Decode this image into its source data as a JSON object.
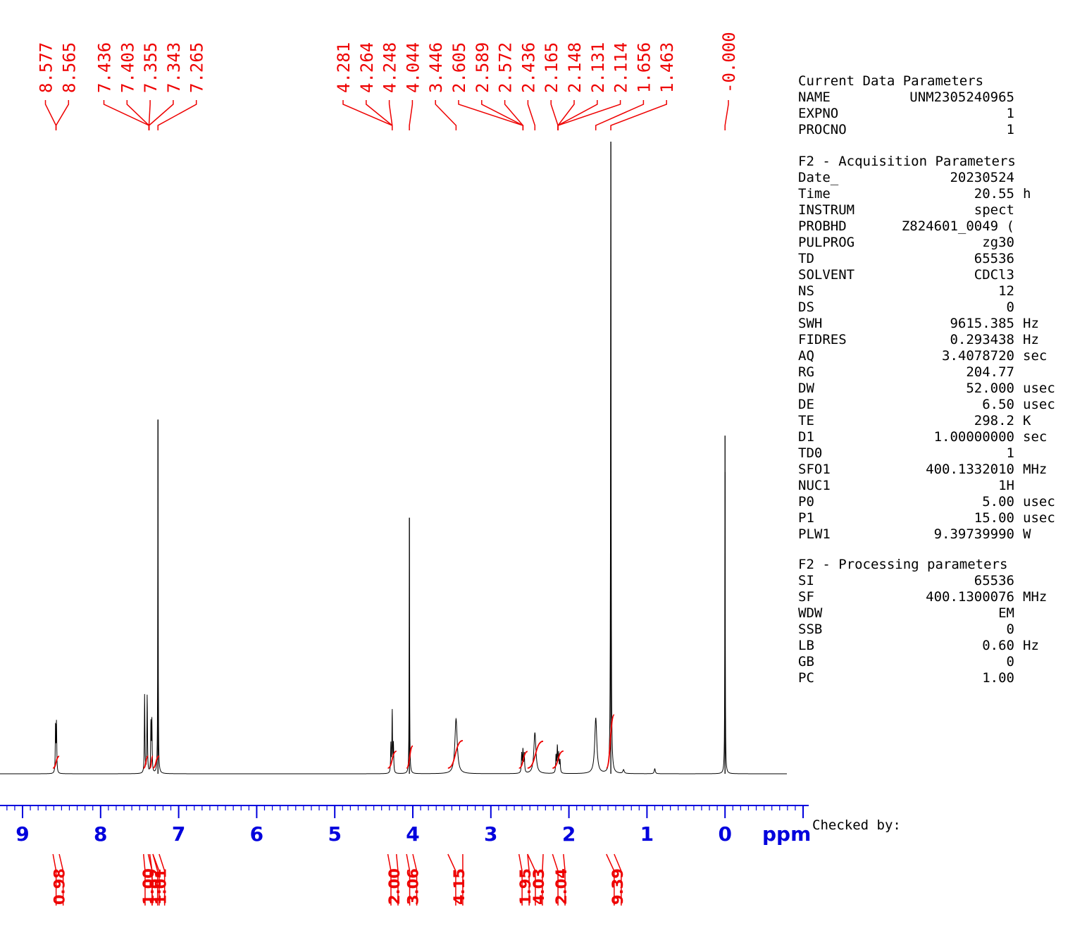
{
  "chart_data": {
    "type": "line",
    "xlabel": "ppm",
    "xlim": [
      9.0,
      0.0
    ],
    "x_ticks": [
      "9",
      "8",
      "7",
      "6",
      "5",
      "4",
      "3",
      "2",
      "1",
      "0"
    ],
    "peak_labels": [
      "8.577",
      "8.565",
      "7.436",
      "7.403",
      "7.355",
      "7.343",
      "7.265",
      "4.281",
      "4.264",
      "4.248",
      "4.044",
      "3.446",
      "2.605",
      "2.589",
      "2.572",
      "2.436",
      "2.165",
      "2.148",
      "2.131",
      "2.114",
      "1.656",
      "1.463",
      "-0.000"
    ],
    "peak_groups": [
      {
        "labels": [
          0,
          1
        ],
        "target": 8.571
      },
      {
        "labels": [
          2,
          3,
          4,
          5
        ],
        "target": 7.38
      },
      {
        "labels": [
          6
        ],
        "target": 7.265
      },
      {
        "labels": [
          7,
          8,
          9
        ],
        "target": 4.264
      },
      {
        "labels": [
          10
        ],
        "target": 4.044
      },
      {
        "labels": [
          11
        ],
        "target": 3.446
      },
      {
        "labels": [
          12,
          13,
          14
        ],
        "target": 2.589
      },
      {
        "labels": [
          15
        ],
        "target": 2.436
      },
      {
        "labels": [
          16,
          17,
          18,
          19
        ],
        "target": 2.14
      },
      {
        "labels": [
          20
        ],
        "target": 1.656
      },
      {
        "labels": [
          21
        ],
        "target": 1.463
      },
      {
        "labels": [
          22
        ],
        "target": 0.0
      }
    ],
    "peaks": [
      {
        "ppm": 8.577,
        "height": 0.078,
        "width": 0.004
      },
      {
        "ppm": 8.565,
        "height": 0.078,
        "width": 0.004
      },
      {
        "ppm": 7.436,
        "height": 0.125,
        "width": 0.004
      },
      {
        "ppm": 7.403,
        "height": 0.125,
        "width": 0.004
      },
      {
        "ppm": 7.355,
        "height": 0.08,
        "width": 0.004
      },
      {
        "ppm": 7.343,
        "height": 0.08,
        "width": 0.004
      },
      {
        "ppm": 7.265,
        "height": 0.56,
        "width": 0.003
      },
      {
        "ppm": 4.281,
        "height": 0.045,
        "width": 0.004
      },
      {
        "ppm": 4.264,
        "height": 0.1,
        "width": 0.004
      },
      {
        "ppm": 4.248,
        "height": 0.045,
        "width": 0.004
      },
      {
        "ppm": 4.044,
        "height": 0.405,
        "width": 0.003
      },
      {
        "ppm": 3.446,
        "height": 0.087,
        "width": 0.018
      },
      {
        "ppm": 2.605,
        "height": 0.03,
        "width": 0.005
      },
      {
        "ppm": 2.589,
        "height": 0.036,
        "width": 0.005
      },
      {
        "ppm": 2.572,
        "height": 0.03,
        "width": 0.005
      },
      {
        "ppm": 2.436,
        "height": 0.065,
        "width": 0.016
      },
      {
        "ppm": 2.165,
        "height": 0.028,
        "width": 0.005
      },
      {
        "ppm": 2.148,
        "height": 0.042,
        "width": 0.005
      },
      {
        "ppm": 2.131,
        "height": 0.03,
        "width": 0.005
      },
      {
        "ppm": 2.114,
        "height": 0.02,
        "width": 0.005
      },
      {
        "ppm": 1.656,
        "height": 0.088,
        "width": 0.016
      },
      {
        "ppm": 1.463,
        "height": 1.0,
        "width": 0.004
      },
      {
        "ppm": 1.3,
        "height": 0.006,
        "width": 0.01
      },
      {
        "ppm": 0.9,
        "height": 0.008,
        "width": 0.008
      },
      {
        "ppm": 0.0,
        "height": 0.535,
        "width": 0.003
      }
    ],
    "integrals": [
      {
        "from": 8.61,
        "to": 8.53,
        "value": "0.98",
        "label_ppm": 8.57
      },
      {
        "from": 7.45,
        "to": 7.39,
        "value": "1.00",
        "label_ppm": 7.43
      },
      {
        "from": 7.37,
        "to": 7.33,
        "value": "1.02",
        "label_ppm": 7.34
      },
      {
        "from": 7.33,
        "to": 7.25,
        "value": "1.01",
        "label_ppm": 7.27
      },
      {
        "from": 4.32,
        "to": 4.21,
        "value": "2.00",
        "label_ppm": 4.28
      },
      {
        "from": 4.08,
        "to": 4.0,
        "value": "3.06",
        "label_ppm": 4.04
      },
      {
        "from": 3.55,
        "to": 3.36,
        "value": "4.15",
        "label_ppm": 3.45
      },
      {
        "from": 2.64,
        "to": 2.53,
        "value": "1.95",
        "label_ppm": 2.6
      },
      {
        "from": 2.53,
        "to": 2.33,
        "value": "4.03",
        "label_ppm": 2.43
      },
      {
        "from": 2.21,
        "to": 2.07,
        "value": "2.04",
        "label_ppm": 2.14
      },
      {
        "from": 1.52,
        "to": 1.42,
        "value": "9.39",
        "label_ppm": 1.42
      }
    ],
    "colors": {
      "spectrum": "#000000",
      "annotations": "#ee0000",
      "axis": "#0000dd"
    }
  },
  "parameters": {
    "sections": [
      {
        "title": "Current Data Parameters",
        "rows": [
          {
            "key": "NAME",
            "value": "UNM2305240965",
            "unit": ""
          },
          {
            "key": "EXPNO",
            "value": "1",
            "unit": ""
          },
          {
            "key": "PROCNO",
            "value": "1",
            "unit": ""
          }
        ]
      },
      {
        "title": "F2 - Acquisition Parameters",
        "rows": [
          {
            "key": "Date_",
            "value": "20230524",
            "unit": ""
          },
          {
            "key": "Time",
            "value": "20.55",
            "unit": "h"
          },
          {
            "key": "INSTRUM",
            "value": "spect",
            "unit": ""
          },
          {
            "key": "PROBHD",
            "value": "Z824601_0049 (",
            "unit": ""
          },
          {
            "key": "PULPROG",
            "value": "zg30",
            "unit": ""
          },
          {
            "key": "TD",
            "value": "65536",
            "unit": ""
          },
          {
            "key": "SOLVENT",
            "value": "CDCl3",
            "unit": ""
          },
          {
            "key": "NS",
            "value": "12",
            "unit": ""
          },
          {
            "key": "DS",
            "value": "0",
            "unit": ""
          },
          {
            "key": "SWH",
            "value": "9615.385",
            "unit": "Hz"
          },
          {
            "key": "FIDRES",
            "value": "0.293438",
            "unit": "Hz"
          },
          {
            "key": "AQ",
            "value": "3.4078720",
            "unit": "sec"
          },
          {
            "key": "RG",
            "value": "204.77",
            "unit": ""
          },
          {
            "key": "DW",
            "value": "52.000",
            "unit": "usec"
          },
          {
            "key": "DE",
            "value": "6.50",
            "unit": "usec"
          },
          {
            "key": "TE",
            "value": "298.2",
            "unit": "K"
          },
          {
            "key": "D1",
            "value": "1.00000000",
            "unit": "sec"
          },
          {
            "key": "TD0",
            "value": "1",
            "unit": ""
          },
          {
            "key": "SFO1",
            "value": "400.1332010",
            "unit": "MHz"
          },
          {
            "key": "NUC1",
            "value": "1H",
            "unit": ""
          },
          {
            "key": "P0",
            "value": "5.00",
            "unit": "usec"
          },
          {
            "key": "P1",
            "value": "15.00",
            "unit": "usec"
          },
          {
            "key": "PLW1",
            "value": "9.39739990",
            "unit": "W"
          }
        ]
      },
      {
        "title": "F2 - Processing parameters",
        "rows": [
          {
            "key": "SI",
            "value": "65536",
            "unit": ""
          },
          {
            "key": "SF",
            "value": "400.1300076",
            "unit": "MHz"
          },
          {
            "key": "WDW",
            "value": "EM",
            "unit": ""
          },
          {
            "key": "SSB",
            "value": "0",
            "unit": ""
          },
          {
            "key": "LB",
            "value": "0.60",
            "unit": "Hz"
          },
          {
            "key": "GB",
            "value": "0",
            "unit": ""
          },
          {
            "key": "PC",
            "value": "1.00",
            "unit": ""
          }
        ]
      }
    ]
  },
  "footer": {
    "checked_by": "Checked by:"
  }
}
